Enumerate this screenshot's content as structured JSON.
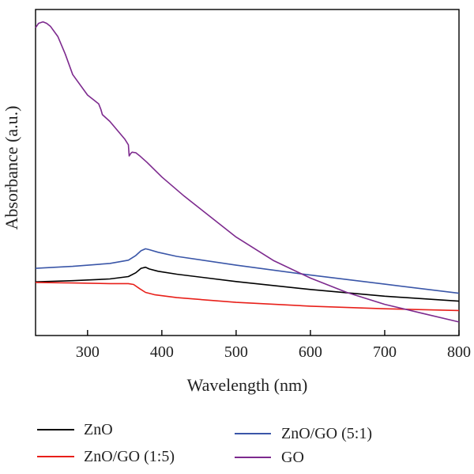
{
  "chart_data": {
    "type": "line",
    "xlabel": "Wavelength (nm)",
    "ylabel": "Absorbance (a.u.)",
    "xlim": [
      230,
      800
    ],
    "ylim": [
      0,
      100
    ],
    "x_ticks": [
      300,
      400,
      500,
      600,
      700,
      800
    ],
    "y_ticks_labeled": false,
    "grid": false,
    "legend_placement": "bottom",
    "series": [
      {
        "name": "ZnO",
        "color": "#000000",
        "x": [
          230,
          280,
          330,
          355,
          365,
          372,
          378,
          383,
          395,
          420,
          500,
          600,
          700,
          800
        ],
        "y": [
          13.2,
          13.6,
          14.2,
          15.0,
          16.3,
          17.8,
          18.2,
          17.6,
          16.8,
          15.8,
          13.3,
          10.6,
          8.3,
          6.6
        ]
      },
      {
        "name": "ZnO/GO (1:5)",
        "color": "#e8201a",
        "x": [
          230,
          280,
          330,
          355,
          362,
          370,
          378,
          390,
          420,
          500,
          600,
          700,
          800
        ],
        "y": [
          13.0,
          12.8,
          12.6,
          12.6,
          12.3,
          10.9,
          9.6,
          8.8,
          7.8,
          6.2,
          4.9,
          4.0,
          3.4
        ]
      },
      {
        "name": "ZnO/GO (5:1)",
        "color": "#3a56a8",
        "x": [
          230,
          280,
          330,
          355,
          365,
          372,
          378,
          383,
          395,
          420,
          500,
          600,
          700,
          800
        ],
        "y": [
          17.8,
          18.5,
          19.5,
          20.6,
          22.2,
          23.8,
          24.5,
          24.2,
          23.3,
          21.9,
          18.9,
          15.5,
          12.4,
          9.3
        ]
      },
      {
        "name": "GO",
        "color": "#7d2a8e",
        "x": [
          230,
          234,
          240,
          245,
          250,
          260,
          270,
          280,
          300,
          315,
          318,
          320,
          330,
          340,
          350,
          355,
          356,
          358,
          360,
          365,
          370,
          380,
          400,
          430,
          460,
          500,
          550,
          600,
          650,
          700,
          750,
          800
        ],
        "y": [
          100.0,
          101.5,
          102.0,
          101.5,
          100.5,
          97.0,
          91.0,
          84.0,
          77.0,
          74.0,
          72.0,
          70.3,
          68.0,
          65.0,
          62.0,
          60.0,
          56.2,
          57.0,
          57.5,
          57.3,
          56.3,
          54.0,
          49.0,
          42.5,
          36.5,
          28.5,
          20.5,
          14.5,
          9.5,
          5.5,
          2.5,
          -0.5
        ]
      }
    ]
  }
}
